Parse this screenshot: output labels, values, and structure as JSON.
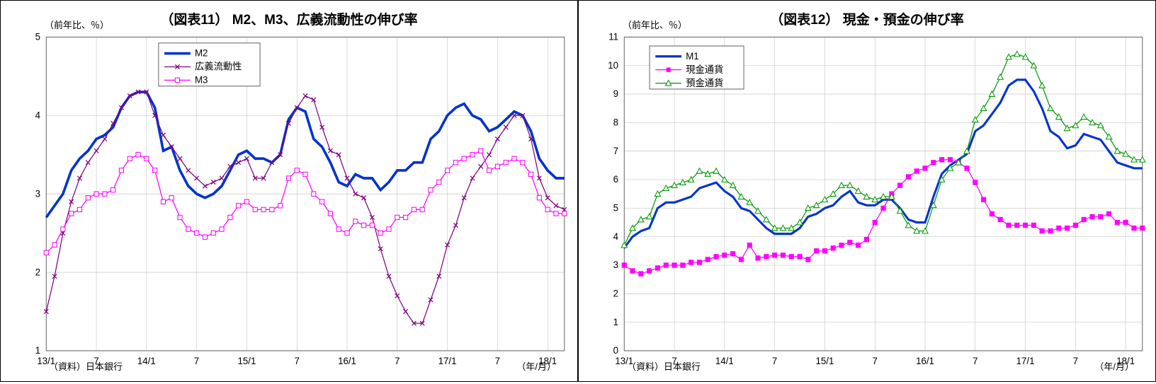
{
  "chart11": {
    "title": "（図表11） M2、M3、広義流動性の伸び率",
    "ylabel": "（前年比、％）",
    "xlabel": "（年/月）",
    "source": "（資料）日本銀行",
    "legend": [
      "M2",
      "広義流動性",
      "M3"
    ],
    "ylim": [
      1,
      5
    ],
    "ytick_step": 1,
    "xticks_idx": [
      0,
      6,
      12,
      18,
      24,
      30,
      36,
      42,
      48,
      54,
      60
    ],
    "xticks_lbl": [
      "13/1",
      "7",
      "14/1",
      "7",
      "15/1",
      "7",
      "16/1",
      "7",
      "17/1",
      "7",
      "18/1"
    ],
    "n_points": 63,
    "colors": {
      "m2": "#0033cc",
      "kougi": "#800080",
      "m3": "#ff00ff",
      "grid": "#bbbbbb",
      "border": "#666666",
      "bg": "#ffffff"
    },
    "styles": {
      "m2_width": 3.5,
      "kougi_width": 1.2,
      "m3_width": 1.2,
      "m2_marker": "none",
      "kougi_marker": "x",
      "m3_marker": "square",
      "marker_size": 3.5,
      "title_fontsize": 19,
      "axis_fontsize": 13
    },
    "series": {
      "m2": [
        2.7,
        2.85,
        3.0,
        3.3,
        3.45,
        3.55,
        3.7,
        3.75,
        3.85,
        4.1,
        4.25,
        4.3,
        4.3,
        4.1,
        3.55,
        3.6,
        3.3,
        3.1,
        3.0,
        2.95,
        3.0,
        3.1,
        3.3,
        3.5,
        3.55,
        3.45,
        3.45,
        3.4,
        3.5,
        3.95,
        4.1,
        4.05,
        3.7,
        3.6,
        3.4,
        3.15,
        3.1,
        3.25,
        3.2,
        3.2,
        3.05,
        3.15,
        3.3,
        3.3,
        3.4,
        3.4,
        3.7,
        3.8,
        4.0,
        4.1,
        4.15,
        4.0,
        3.95,
        3.8,
        3.85,
        3.95,
        4.05,
        4.0,
        3.8,
        3.45,
        3.3,
        3.2,
        3.2
      ],
      "kougi": [
        1.5,
        1.95,
        2.5,
        2.9,
        3.2,
        3.4,
        3.55,
        3.7,
        3.9,
        4.1,
        4.25,
        4.3,
        4.3,
        4.0,
        3.75,
        3.6,
        3.45,
        3.3,
        3.2,
        3.1,
        3.15,
        3.2,
        3.35,
        3.4,
        3.45,
        3.2,
        3.2,
        3.4,
        3.5,
        3.9,
        4.1,
        4.25,
        4.2,
        3.85,
        3.55,
        3.5,
        3.2,
        3.0,
        2.95,
        2.7,
        2.3,
        1.95,
        1.7,
        1.5,
        1.35,
        1.35,
        1.65,
        1.95,
        2.35,
        2.6,
        2.95,
        3.2,
        3.35,
        3.5,
        3.7,
        3.85,
        4.0,
        4.0,
        3.7,
        3.2,
        2.95,
        2.85,
        2.8
      ],
      "m3": [
        2.25,
        2.35,
        2.55,
        2.75,
        2.8,
        2.95,
        3.0,
        3.0,
        3.05,
        3.3,
        3.45,
        3.5,
        3.45,
        3.3,
        2.9,
        2.95,
        2.7,
        2.55,
        2.5,
        2.45,
        2.5,
        2.55,
        2.7,
        2.85,
        2.9,
        2.8,
        2.8,
        2.8,
        2.85,
        3.2,
        3.3,
        3.25,
        3.0,
        2.9,
        2.75,
        2.55,
        2.5,
        2.65,
        2.6,
        2.6,
        2.5,
        2.55,
        2.7,
        2.7,
        2.8,
        2.8,
        3.05,
        3.15,
        3.3,
        3.4,
        3.45,
        3.5,
        3.55,
        3.3,
        3.35,
        3.4,
        3.45,
        3.4,
        3.25,
        2.95,
        2.8,
        2.75,
        2.75
      ]
    }
  },
  "chart12": {
    "title": "（図表12） 現金・預金の伸び率",
    "ylabel": "（前年比、％）",
    "xlabel": "（年/月）",
    "source": "（資料）日本銀行",
    "legend": [
      "M1",
      "現金通貨",
      "預金通貨"
    ],
    "ylim": [
      0,
      11
    ],
    "ytick_step": 1,
    "xticks_idx": [
      0,
      6,
      12,
      18,
      24,
      30,
      36,
      42,
      48,
      54,
      60
    ],
    "xticks_lbl": [
      "13/1",
      "7",
      "14/1",
      "7",
      "15/1",
      "7",
      "16/1",
      "7",
      "17/1",
      "7",
      "18/1"
    ],
    "n_points": 63,
    "colors": {
      "m1": "#0033cc",
      "genkin": "#ff00ff",
      "yokin": "#009900",
      "grid": "#bbbbbb",
      "border": "#666666",
      "bg": "#ffffff"
    },
    "styles": {
      "m1_width": 3,
      "genkin_width": 1.2,
      "yokin_width": 1.2,
      "genkin_marker": "square_filled",
      "yokin_marker": "triangle",
      "marker_size": 4,
      "title_fontsize": 19,
      "axis_fontsize": 13
    },
    "series": {
      "m1": [
        3.6,
        4.0,
        4.2,
        4.3,
        5.0,
        5.2,
        5.2,
        5.3,
        5.4,
        5.7,
        5.8,
        5.9,
        5.6,
        5.4,
        5.0,
        4.9,
        4.6,
        4.3,
        4.1,
        4.1,
        4.1,
        4.3,
        4.7,
        4.8,
        5.0,
        5.1,
        5.4,
        5.6,
        5.2,
        5.1,
        5.1,
        5.3,
        5.3,
        5.0,
        4.6,
        4.5,
        4.5,
        5.4,
        6.2,
        6.5,
        6.7,
        6.9,
        7.7,
        7.9,
        8.3,
        8.7,
        9.3,
        9.5,
        9.5,
        9.1,
        8.5,
        7.7,
        7.5,
        7.1,
        7.2,
        7.6,
        7.5,
        7.4,
        7.0,
        6.6,
        6.5,
        6.4,
        6.4
      ],
      "genkin": [
        3.0,
        2.8,
        2.7,
        2.8,
        2.9,
        3.0,
        3.0,
        3.0,
        3.1,
        3.1,
        3.2,
        3.3,
        3.35,
        3.4,
        3.2,
        3.7,
        3.25,
        3.3,
        3.35,
        3.35,
        3.3,
        3.3,
        3.2,
        3.5,
        3.5,
        3.6,
        3.7,
        3.8,
        3.7,
        3.9,
        4.5,
        5.0,
        5.5,
        5.8,
        6.1,
        6.3,
        6.4,
        6.6,
        6.7,
        6.7,
        6.6,
        6.4,
        5.9,
        5.3,
        4.8,
        4.6,
        4.4,
        4.4,
        4.4,
        4.4,
        4.2,
        4.2,
        4.3,
        4.3,
        4.4,
        4.6,
        4.7,
        4.7,
        4.8,
        4.5,
        4.5,
        4.3,
        4.3
      ],
      "yokin": [
        3.7,
        4.3,
        4.6,
        4.7,
        5.5,
        5.7,
        5.8,
        5.9,
        6.0,
        6.3,
        6.2,
        6.3,
        6.0,
        5.8,
        5.4,
        5.2,
        4.9,
        4.6,
        4.3,
        4.3,
        4.3,
        4.5,
        5.0,
        5.1,
        5.3,
        5.5,
        5.8,
        5.8,
        5.6,
        5.4,
        5.3,
        5.4,
        5.4,
        4.9,
        4.4,
        4.2,
        4.2,
        5.1,
        6.0,
        6.4,
        6.6,
        7.0,
        8.1,
        8.5,
        9.0,
        9.6,
        10.3,
        10.4,
        10.3,
        10.0,
        9.3,
        8.5,
        8.2,
        7.8,
        7.9,
        8.2,
        8.0,
        7.9,
        7.5,
        7.0,
        6.9,
        6.7,
        6.7
      ]
    }
  }
}
